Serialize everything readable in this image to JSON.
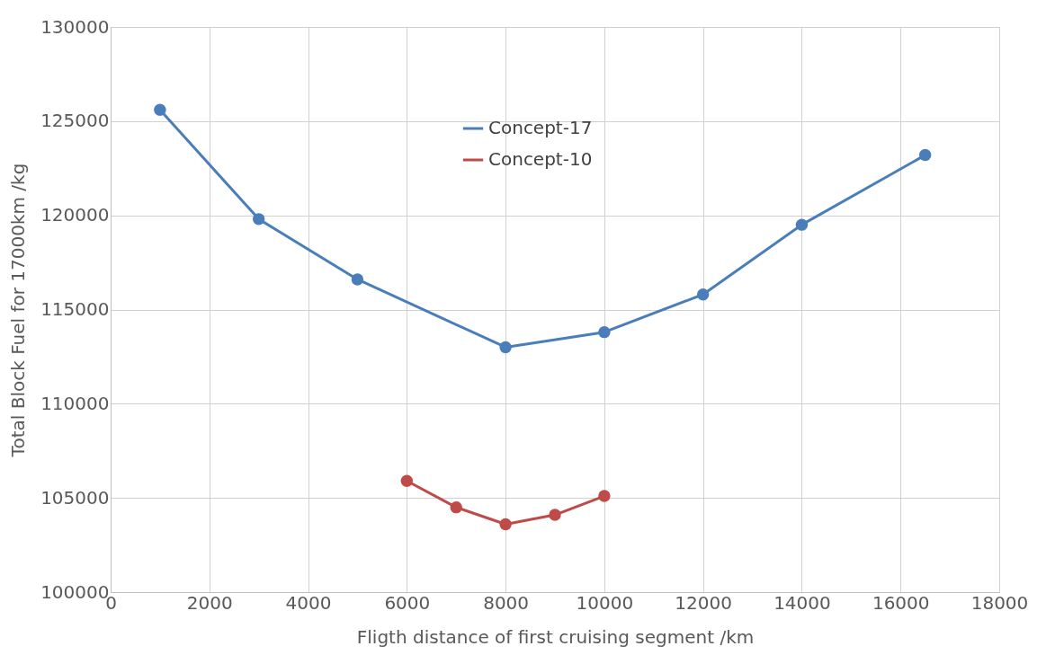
{
  "chart_data": {
    "type": "line",
    "xlabel": "Fligth distance of first cruising segment /km",
    "ylabel": "Total Block Fuel for 17000km /kg",
    "xlim": [
      0,
      18000
    ],
    "xticks": [
      0,
      2000,
      4000,
      6000,
      8000,
      10000,
      12000,
      14000,
      16000,
      18000
    ],
    "ylim": [
      100000,
      130000
    ],
    "yticks": [
      100000,
      105000,
      110000,
      115000,
      120000,
      125000,
      130000
    ],
    "grid": true,
    "legend": "top",
    "marker": "circle",
    "line_style": "solid",
    "series": [
      {
        "name": "Concept-17",
        "color": "#4a7ebb",
        "x": [
          1000,
          3000,
          5000,
          8000,
          10000,
          12000,
          14000,
          16500
        ],
        "values": [
          125600,
          119800,
          116600,
          113000,
          113800,
          115800,
          119500,
          123200
        ]
      },
      {
        "name": "Concept-10",
        "color": "#be4b48",
        "x": [
          6000,
          7000,
          8000,
          9000,
          10000
        ],
        "values": [
          105900,
          104500,
          103600,
          104100,
          105100
        ]
      }
    ]
  }
}
